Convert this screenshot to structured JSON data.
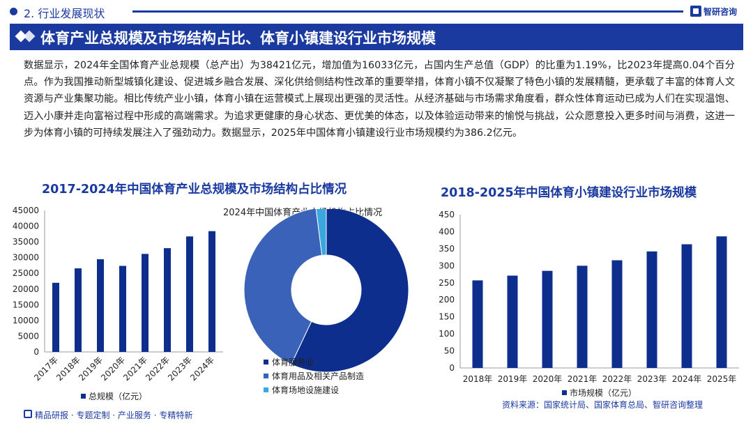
{
  "header": {
    "section_title": "2. 行业发展现状",
    "logo_text": "智研咨询",
    "banner_title": "体育产业总规模及市场结构占比、体育小镇建设行业市场规模"
  },
  "paragraph": "数据显示，2024年全国体育产业总规模（总产出）为38421亿元，增加值为16033亿元，占国内生产总值（GDP）的比重为1.19%，比2023年提高0.04个百分点。作为我国推动新型城镇化建设、促进城乡融合发展、深化供给侧结构性改革的重要举措，体育小镇不仅凝聚了特色小镇的发展精髓，更承载了丰富的体育人文资源与产业集聚功能。相比传统产业小镇，体育小镇在运营模式上展现出更强的灵活性。从经济基础与市场需求角度看，群众性体育运动已成为人们在实现温饱、迈入小康并走向富裕过程中形成的高端需求。为追求更健康的身心状态、更优美的体态，以及体验运动带来的愉悦与挑战，公众愿意投入更多时间与消费，这进一步为体育小镇的可持续发展注入了强劲动力。数据显示，2025年中国体育小镇建设行业市场规模约为386.2亿元。",
  "chart_data": [
    {
      "type": "bar",
      "title": "2017-2024年中国体育产业总规模及市场结构占比情况",
      "categories": [
        "2017年",
        "2018年",
        "2019年",
        "2020年",
        "2021年",
        "2022年",
        "2023年",
        "2024年"
      ],
      "series": [
        {
          "name": "总规模（亿元）",
          "values": [
            21988,
            26579,
            29483,
            27372,
            31175,
            33008,
            36741,
            38421
          ]
        }
      ],
      "ylim": [
        0,
        45000
      ],
      "yticks": [
        0,
        5000,
        10000,
        15000,
        20000,
        25000,
        30000,
        35000,
        40000,
        45000
      ],
      "legend": "bottom",
      "grid": false
    },
    {
      "type": "pie",
      "title": "2024年中国体育产业市场机构占比情况",
      "labels": [
        "体育服务业",
        "体育用品及相关产品制造",
        "体育场地设施建设"
      ],
      "values": [
        0.57,
        0.41,
        0.02
      ],
      "colors": [
        "#0d2e8c",
        "#3a62b8",
        "#3aa8dc"
      ],
      "legend": "bottom-right"
    },
    {
      "type": "bar",
      "title": "2018-2025年中国体育小镇建设行业市场规模",
      "categories": [
        "2018年",
        "2019年",
        "2020年",
        "2021年",
        "2022年",
        "2023年",
        "2024年",
        "2025年"
      ],
      "series": [
        {
          "name": "市场规模（亿元）",
          "values": [
            257,
            271,
            285,
            300,
            316,
            342,
            363,
            386.2
          ]
        }
      ],
      "ylim": [
        0,
        450
      ],
      "yticks": [
        0,
        50,
        100,
        150,
        200,
        250,
        300,
        350,
        400,
        450
      ],
      "legend": "bottom",
      "grid": false
    }
  ],
  "colors": {
    "primary": "#1b3aa0",
    "bar": "#0d2e8c"
  },
  "footer": {
    "tagline": "精品研报 · 专题定制 · 产业服务 · 专精特新",
    "source": "资料来源：国家统计局、国家体育总局、智研咨询整理"
  }
}
